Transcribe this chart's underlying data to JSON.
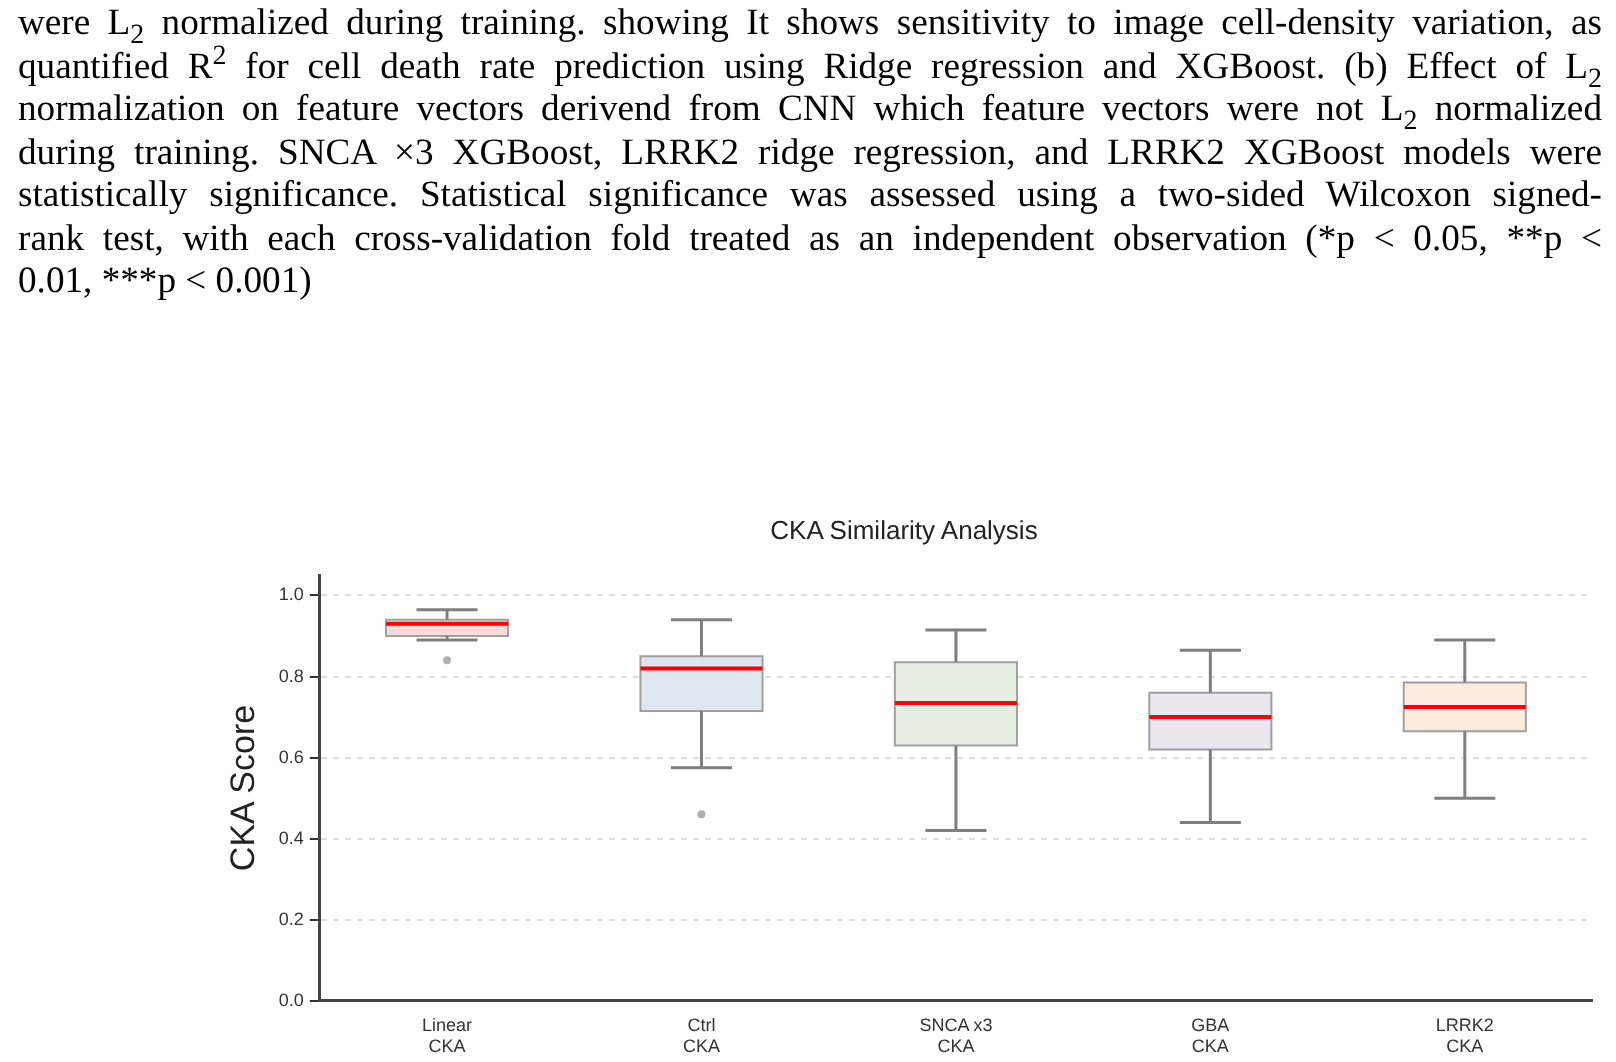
{
  "chart_data": {
    "type": "box",
    "title": "CKA Similarity Analysis",
    "ylabel": "CKA Score",
    "categories": [
      "Linear CKA",
      "Ctrl CKA",
      "SNCA x3 CKA",
      "GBA CKA",
      "LRRK2 CKA"
    ],
    "boxes": [
      {
        "low": 0.89,
        "q1": 0.9,
        "median": 0.93,
        "q3": 0.94,
        "high": 0.965,
        "outliers": [
          0.84
        ]
      },
      {
        "low": 0.575,
        "q1": 0.715,
        "median": 0.82,
        "q3": 0.85,
        "high": 0.94,
        "outliers": [
          0.46
        ]
      },
      {
        "low": 0.42,
        "q1": 0.63,
        "median": 0.735,
        "q3": 0.835,
        "high": 0.915
      },
      {
        "low": 0.44,
        "q1": 0.62,
        "median": 0.7,
        "q3": 0.76,
        "high": 0.865
      },
      {
        "low": 0.5,
        "q1": 0.665,
        "median": 0.725,
        "q3": 0.785,
        "high": 0.89
      }
    ],
    "colors": [
      "#f8dcdc",
      "#dee6f0",
      "#e6f0e2",
      "#ece6f0",
      "#f9ecdc"
    ],
    "ylim": [
      0,
      1.05
    ],
    "yticks": [
      {
        "value": 0,
        "label": "0.0"
      },
      0.2,
      0.4,
      0.6,
      0.8,
      {
        "value": 1,
        "label": "1.0"
      }
    ],
    "grid": "y",
    "annotations": [
      "were L$_{2}$ normalized during training. showing It shows sensitivity to image cell-density variation, as",
      "quantified R$^{2}$ for cell death rate prediction using Ridge regression and XGBoost. (b) Effect of L$_{2}$",
      "normalization on feature vectors derivend from CNN which feature vectors were not L$_{2}$ normalized",
      "during training. SNCA ×3 XGBoost, LRRK2 ridge regression, and LRRK2 XGBoost models were",
      "statistically significance. Statistical significance was assessed using a two-sided Wilcoxon signed-",
      "rank test, with each cross-validation fold treated as an independent observation (*p < 0.05, **p <",
      "0.01, ***p < 0.001)"
    ]
  }
}
